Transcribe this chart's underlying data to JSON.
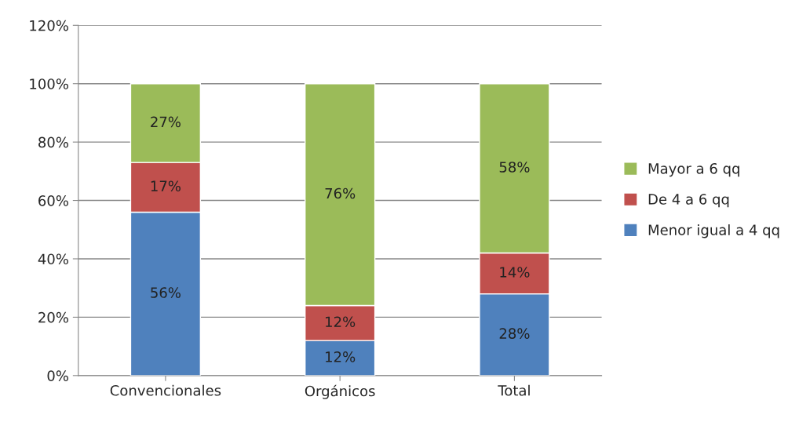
{
  "chart_data": {
    "type": "bar",
    "stacked": true,
    "categories": [
      "Convencionales",
      "Orgánicos",
      "Total"
    ],
    "series": [
      {
        "name": "Menor igual a 4 qq",
        "color": "#4f81bd",
        "values": [
          56,
          12,
          28
        ],
        "value_labels": [
          "56%",
          "12%",
          "28%"
        ]
      },
      {
        "name": "De 4 a 6 qq",
        "color": "#c0504d",
        "values": [
          17,
          12,
          14
        ],
        "value_labels": [
          "17%",
          "12%",
          "14%"
        ]
      },
      {
        "name": "Mayor a 6 qq",
        "color": "#9bbb59",
        "values": [
          27,
          76,
          58
        ],
        "value_labels": [
          "27%",
          "76%",
          "58%"
        ]
      }
    ],
    "ylim": [
      0,
      120
    ],
    "yticks": [
      {
        "value": 0,
        "label": "0%"
      },
      {
        "value": 20,
        "label": "20%"
      },
      {
        "value": 40,
        "label": "40%"
      },
      {
        "value": 60,
        "label": "60%"
      },
      {
        "value": 80,
        "label": "80%"
      },
      {
        "value": 100,
        "label": "100%"
      },
      {
        "value": 120,
        "label": "120%"
      }
    ],
    "grid": "y",
    "legend": "right"
  }
}
